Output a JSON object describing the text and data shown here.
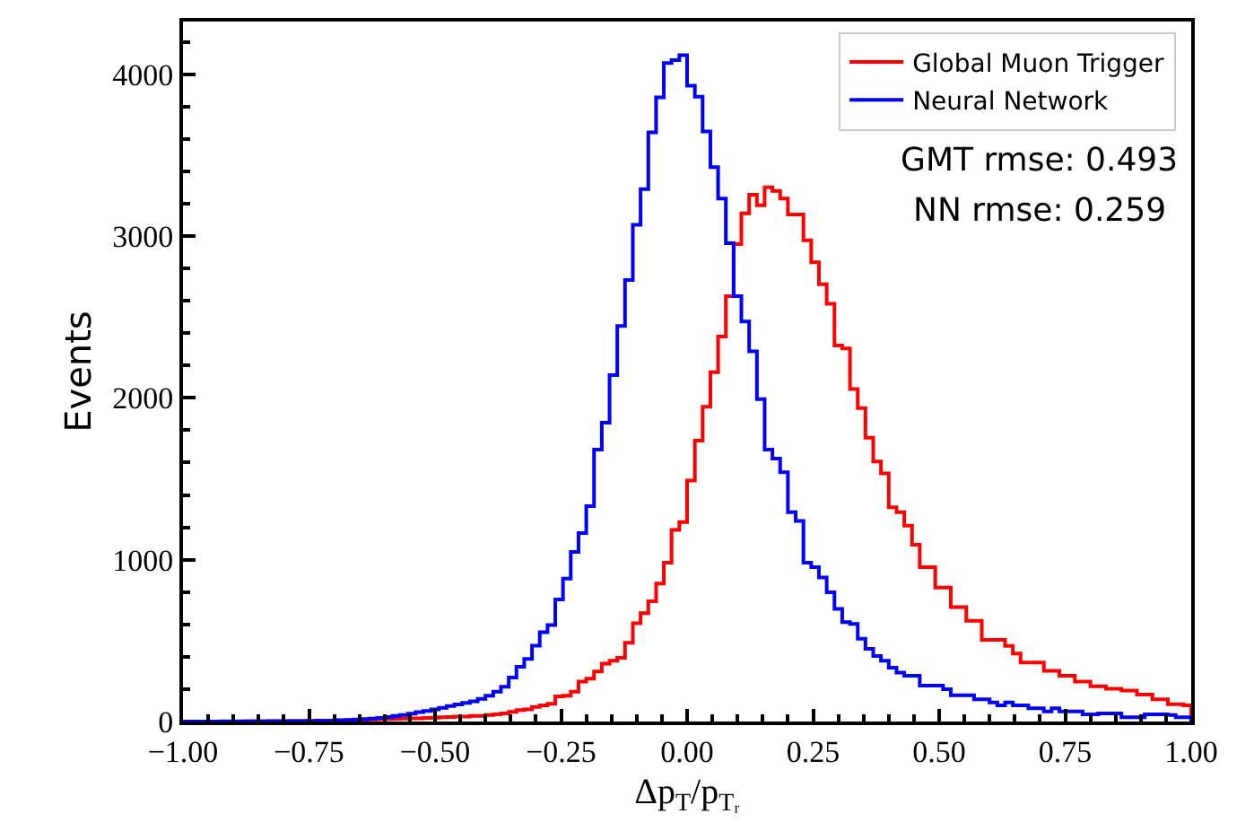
{
  "chart_data": {
    "type": "histogram",
    "xlabel": "Δp$_{T}$/p$_{Tᵣ}$",
    "ylabel": "Events",
    "bins": [
      -1,
      -0.9846,
      -0.9692,
      -0.9538,
      -0.9385,
      -0.9231,
      -0.9077,
      -0.8923,
      -0.8769,
      -0.8615,
      -0.8462,
      -0.8308,
      -0.8154,
      -0.8,
      -0.7846,
      -0.7692,
      -0.7538,
      -0.7385,
      -0.7231,
      -0.7077,
      -0.6923,
      -0.6769,
      -0.6615,
      -0.6462,
      -0.6308,
      -0.6154,
      -0.6,
      -0.5846,
      -0.5692,
      -0.5538,
      -0.5385,
      -0.5231,
      -0.5077,
      -0.4923,
      -0.4769,
      -0.4615,
      -0.4462,
      -0.4308,
      -0.4154,
      -0.4,
      -0.3846,
      -0.3692,
      -0.3538,
      -0.3385,
      -0.3231,
      -0.3077,
      -0.2923,
      -0.2769,
      -0.2615,
      -0.2462,
      -0.2308,
      -0.2154,
      -0.2,
      -0.1846,
      -0.1692,
      -0.1538,
      -0.1385,
      -0.1231,
      -0.1077,
      -0.0923,
      -0.0769,
      -0.0615,
      -0.0462,
      -0.0308,
      -0.0154,
      0,
      0.0154,
      0.0308,
      0.0462,
      0.0615,
      0.0769,
      0.0923,
      0.1077,
      0.1231,
      0.1385,
      0.1538,
      0.1692,
      0.1846,
      0.2,
      0.2154,
      0.2308,
      0.2462,
      0.2615,
      0.2769,
      0.2923,
      0.3077,
      0.3231,
      0.3385,
      0.3538,
      0.3692,
      0.3846,
      0.4,
      0.4154,
      0.4308,
      0.4462,
      0.4615,
      0.4769,
      0.4923,
      0.5077,
      0.5231,
      0.5385,
      0.5538,
      0.5692,
      0.5846,
      0.6,
      0.6154,
      0.6308,
      0.6462,
      0.6615,
      0.6769,
      0.6923,
      0.7077,
      0.7231,
      0.7385,
      0.7538,
      0.7692,
      0.7846,
      0.8,
      0.8154,
      0.8308,
      0.8462,
      0.8615,
      0.8769,
      0.8923,
      0.9077,
      0.9231,
      0.9385,
      0.9538,
      0.9692,
      0.9846,
      1
    ],
    "series": [
      {
        "name": "Global Muon Trigger",
        "color": "#ff0000",
        "values": [
          0,
          0,
          0,
          0,
          0,
          0,
          0,
          0,
          1,
          1,
          1,
          2,
          2,
          2,
          3,
          3,
          4,
          5,
          5,
          6,
          7,
          8,
          9,
          10,
          12,
          14,
          15,
          16,
          18,
          19,
          20,
          22,
          24,
          26,
          28,
          30,
          30,
          34,
          35,
          40,
          45,
          50,
          60,
          71,
          75,
          90,
          100,
          110,
          155,
          160,
          184,
          247,
          265,
          309,
          357,
          376,
          394,
          486,
          607,
          669,
          743,
          853,
          982,
          1184,
          1232,
          1489,
          1735,
          1945,
          2158,
          2379,
          2628,
          2950,
          3140,
          3255,
          3190,
          3300,
          3279,
          3231,
          3133,
          3133,
          2974,
          2838,
          2702,
          2581,
          2323,
          2305,
          2055,
          1937,
          1754,
          1606,
          1533,
          1324,
          1294,
          1210,
          1092,
          953,
          953,
          828,
          828,
          707,
          707,
          622,
          622,
          504,
          504,
          504,
          467,
          420,
          365,
          365,
          365,
          313,
          313,
          283,
          283,
          247,
          247,
          217,
          217,
          203,
          203,
          192,
          192,
          166,
          166,
          137,
          137,
          107,
          107,
          100
        ]
      },
      {
        "name": "Neural Network",
        "color": "#0000ff",
        "values": [
          0,
          0,
          0,
          0,
          0,
          1,
          1,
          1,
          2,
          2,
          2,
          3,
          3,
          3,
          3,
          3,
          3,
          4,
          5,
          6,
          8,
          10,
          12,
          15,
          18,
          22,
          28,
          34,
          40,
          48,
          58,
          65,
          75,
          85,
          95,
          105,
          115,
          125,
          140,
          160,
          185,
          215,
          272,
          338,
          387,
          468,
          552,
          596,
          754,
          883,
          1048,
          1165,
          1331,
          1680,
          1846,
          2140,
          2444,
          2728,
          3069,
          3290,
          3640,
          3856,
          4069,
          4087,
          4117,
          3929,
          3860,
          3646,
          3426,
          3231,
          2956,
          2628,
          2471,
          2287,
          1992,
          1680,
          1625,
          1540,
          1294,
          1239,
          982,
          953,
          890,
          798,
          696,
          614,
          603,
          511,
          449,
          405,
          376,
          332,
          302,
          283,
          283,
          222,
          222,
          222,
          200,
          162,
          162,
          162,
          137,
          137,
          118,
          100,
          118,
          100,
          100,
          82,
          82,
          63,
          82,
          63,
          63,
          63,
          45,
          45,
          50,
          50,
          50,
          26,
          26,
          26,
          45,
          45,
          45,
          40,
          26,
          26
        ]
      }
    ],
    "xlim": [
      -1,
      1
    ],
    "ylim": [
      0,
      4325
    ],
    "xticks": [
      {
        "value": -1,
        "label": "−1.00"
      },
      {
        "value": -0.75,
        "label": "−0.75"
      },
      {
        "value": -0.5,
        "label": "−0.50"
      },
      {
        "value": -0.25,
        "label": "−0.25"
      },
      {
        "value": 0,
        "label": "0.00"
      },
      {
        "value": 0.25,
        "label": "0.25"
      },
      {
        "value": 0.5,
        "label": "0.50"
      },
      {
        "value": 0.75,
        "label": "0.75"
      },
      {
        "value": 1,
        "label": "1.00"
      }
    ],
    "yticks": [
      0,
      1000,
      2000,
      3000,
      4000
    ],
    "annotations": [
      "GMT rmse: 0.493",
      "NN rmse: 0.259"
    ],
    "legend": "top right"
  }
}
